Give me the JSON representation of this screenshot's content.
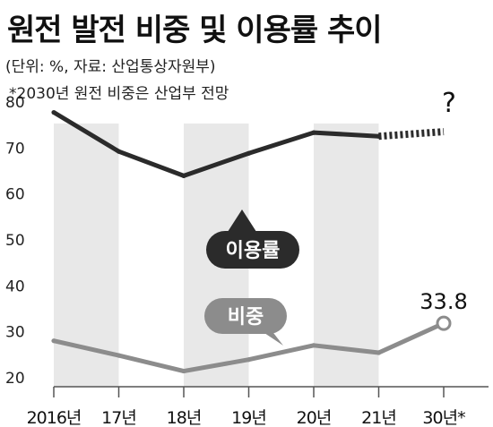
{
  "header": {
    "title": "원전 발전 비중 및 이용률 추이",
    "unit": "(단위: %, 자료: 산업통상자원부)",
    "note": "*2030년 원전 비중은 산업부 전망"
  },
  "chart_data": {
    "type": "line",
    "categories": [
      "2016년",
      "17년",
      "18년",
      "19년",
      "20년",
      "21년",
      "30년*"
    ],
    "ylim": [
      20,
      80
    ],
    "yticks": [
      20,
      30,
      40,
      50,
      60,
      70,
      80
    ],
    "series": [
      {
        "name": "이용률",
        "values": [
          79.7,
          71.2,
          65.9,
          70.8,
          75.3,
          74.5,
          null
        ],
        "projection_value": 75.5,
        "projection_label": "?"
      },
      {
        "name": "비중",
        "values": [
          30.0,
          26.8,
          23.4,
          25.9,
          29.0,
          27.4,
          33.8
        ],
        "end_label": "33.8"
      }
    ],
    "grid": false,
    "legend": "callout-labels"
  },
  "colors": {
    "utilization": "#2b2b2b",
    "share": "#8c8c8c",
    "fill": "#e8e8e8",
    "baseline": "#555555"
  }
}
